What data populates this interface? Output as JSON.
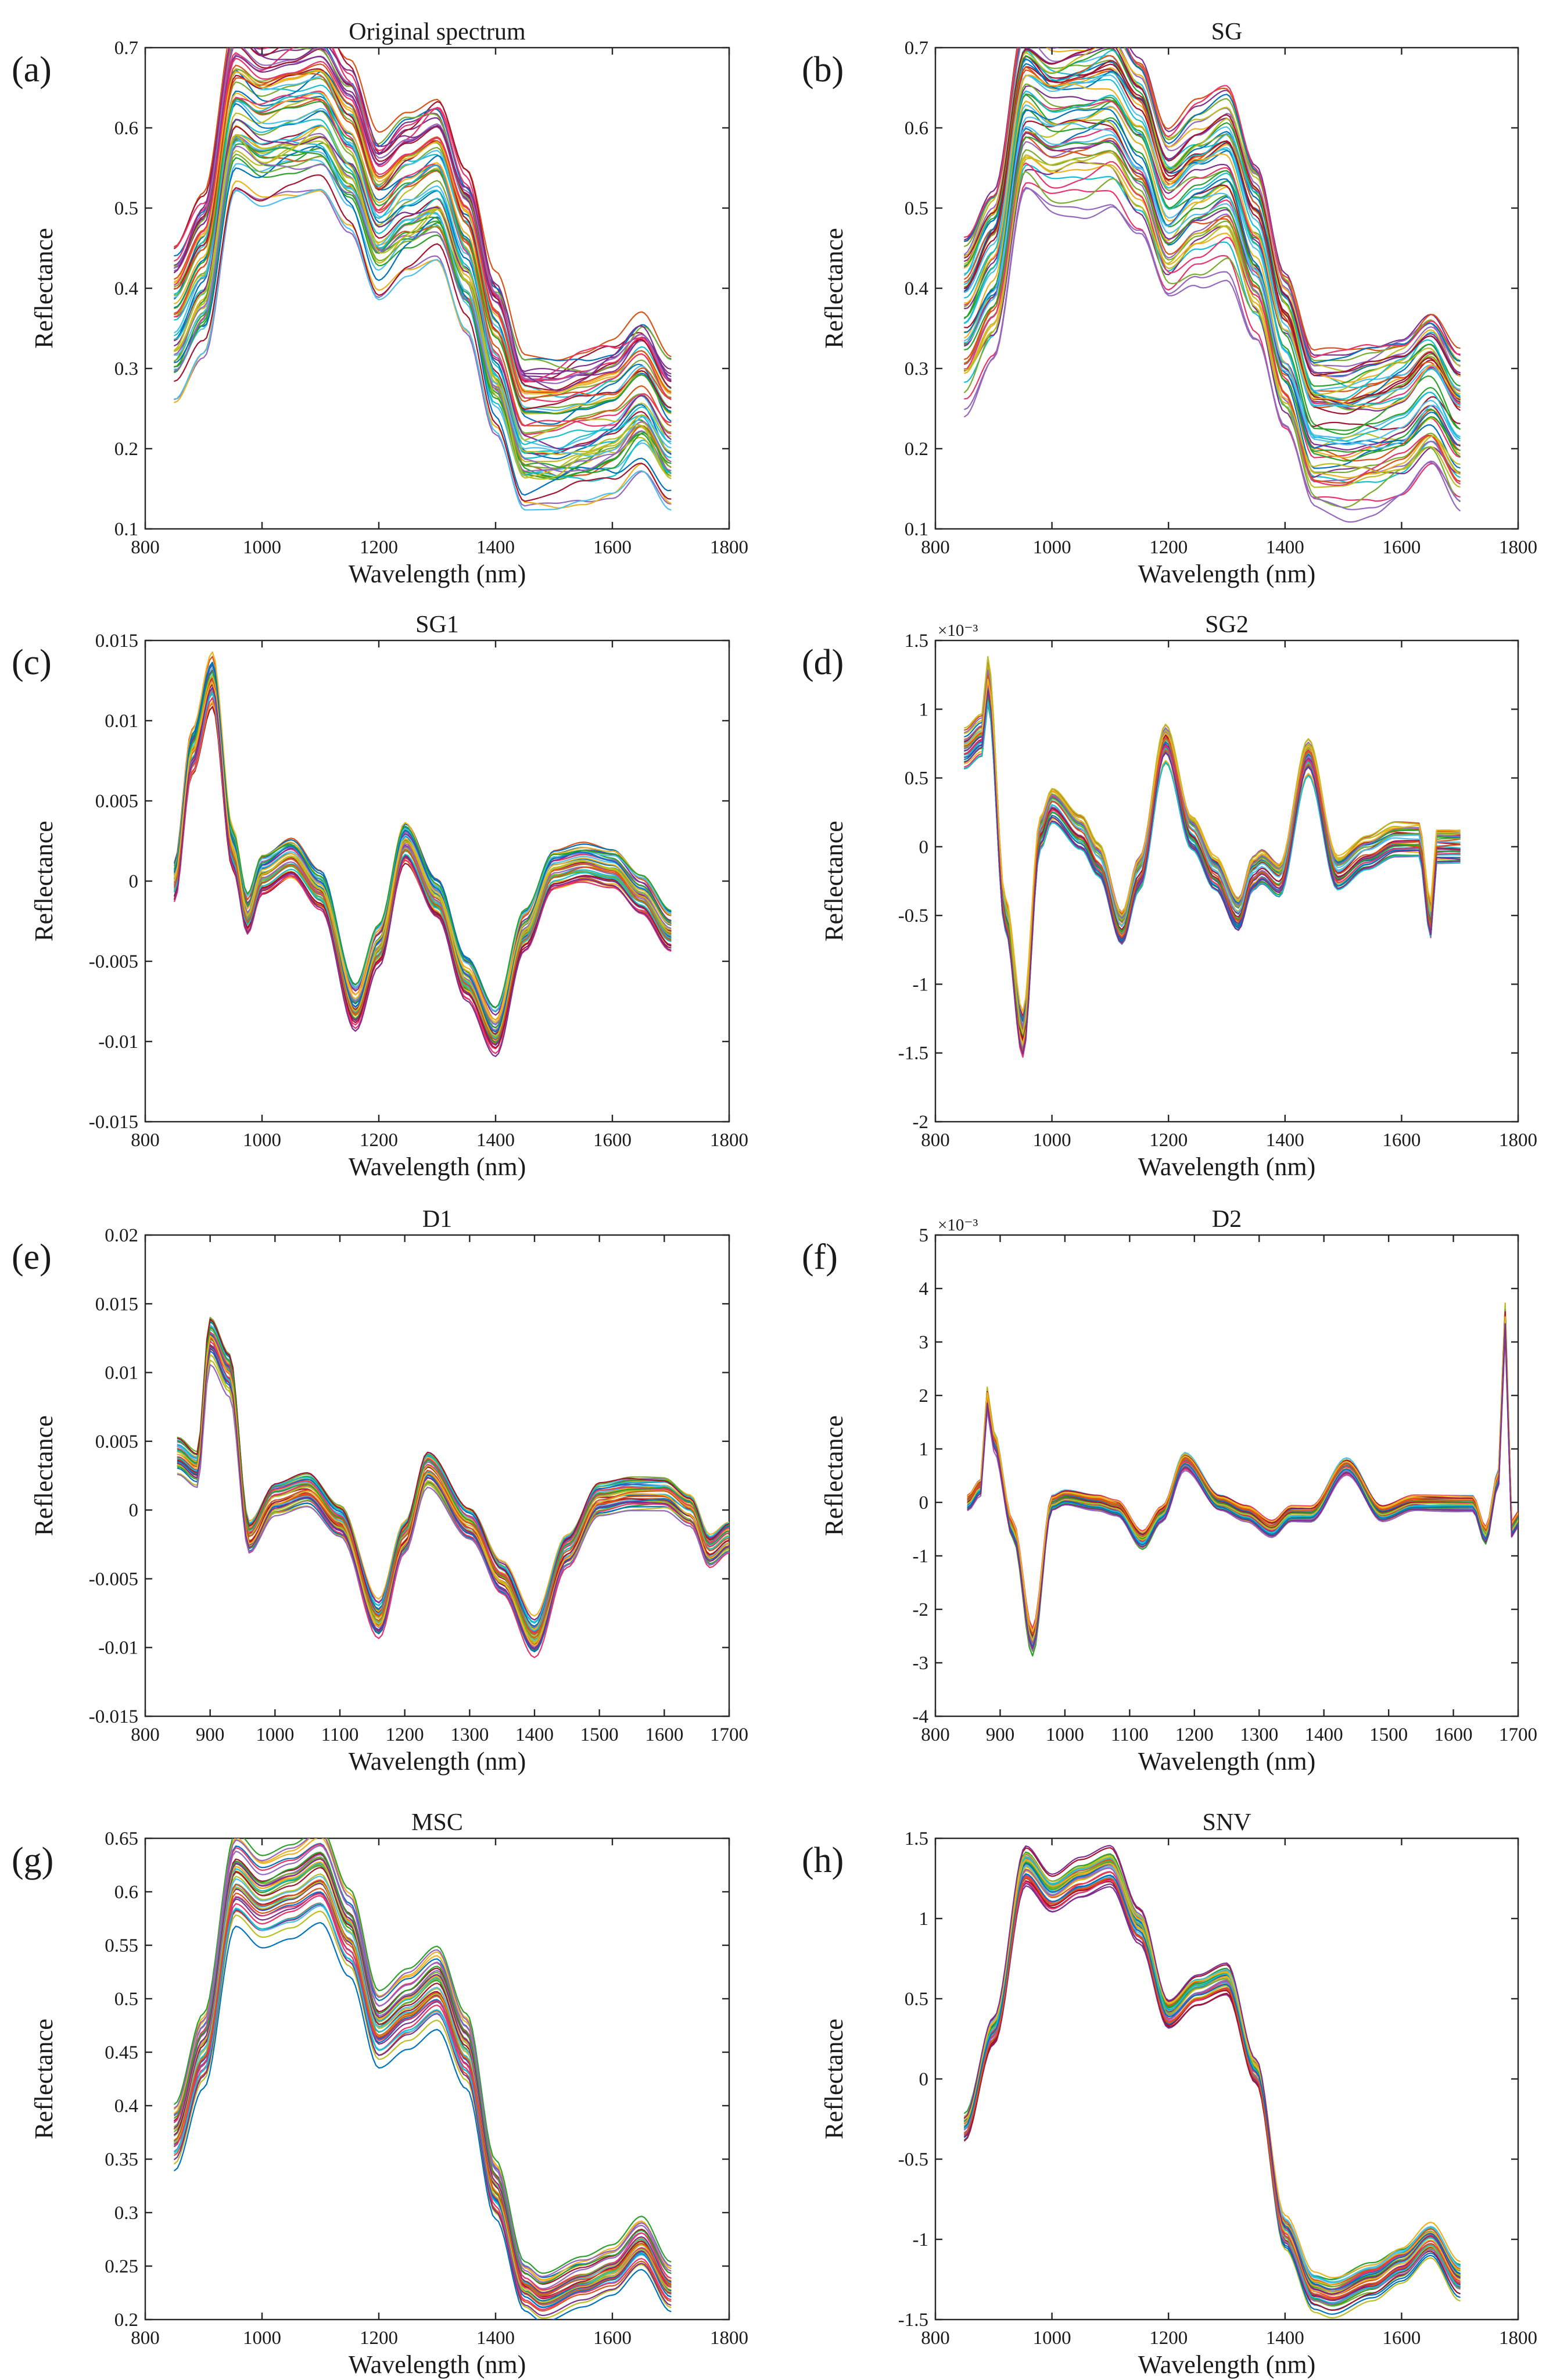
{
  "figure": {
    "description_labels": [
      "(a)",
      "(b)",
      "(c)",
      "(d)",
      "(e)",
      "(f)",
      "(g)",
      "(h)"
    ]
  },
  "palette": [
    "#0072bd",
    "#d95319",
    "#edb120",
    "#7e2f8e",
    "#77ac30",
    "#4dbeee",
    "#a2142f",
    "#e8336b",
    "#2ca02c",
    "#9467bd",
    "#17becf",
    "#bcbd22"
  ],
  "chart_data": [
    {
      "panel": "(a)",
      "type": "line",
      "title": "Original spectrum",
      "xlabel": "Wavelength (nm)",
      "ylabel": "Reflectance",
      "xlim": [
        800,
        1800
      ],
      "ylim": [
        0.1,
        0.7
      ],
      "xticks": [
        800,
        1000,
        1200,
        1400,
        1600,
        1800
      ],
      "xtick_labels": [
        "800",
        "1000",
        "1200",
        "1400",
        "1600",
        "1800"
      ],
      "yticks": [
        0.1,
        0.2,
        0.3,
        0.4,
        0.5,
        0.6,
        0.7
      ],
      "ytick_labels": [
        "0.1",
        "0.2",
        "0.3",
        "0.4",
        "0.5",
        "0.6",
        "0.7"
      ],
      "exponent": "",
      "series_count": 60,
      "spread": 0.09,
      "mean_profile": {
        "x": [
          850,
          900,
          955,
          1000,
          1050,
          1100,
          1150,
          1200,
          1250,
          1300,
          1350,
          1400,
          1450,
          1500,
          1550,
          1600,
          1650,
          1700
        ],
        "y": [
          0.36,
          0.42,
          0.63,
          0.61,
          0.62,
          0.63,
          0.58,
          0.49,
          0.52,
          0.54,
          0.45,
          0.32,
          0.22,
          0.22,
          0.23,
          0.24,
          0.27,
          0.22
        ]
      }
    },
    {
      "panel": "(b)",
      "type": "line",
      "title": "SG",
      "xlabel": "Wavelength (nm)",
      "ylabel": "Reflectance",
      "xlim": [
        800,
        1800
      ],
      "ylim": [
        0.1,
        0.7
      ],
      "xticks": [
        800,
        1000,
        1200,
        1400,
        1600,
        1800
      ],
      "xtick_labels": [
        "800",
        "1000",
        "1200",
        "1400",
        "1600",
        "1800"
      ],
      "yticks": [
        0.1,
        0.2,
        0.3,
        0.4,
        0.5,
        0.6,
        0.7
      ],
      "ytick_labels": [
        "0.1",
        "0.2",
        "0.3",
        "0.4",
        "0.5",
        "0.6",
        "0.7"
      ],
      "exponent": "",
      "series_count": 60,
      "spread": 0.09,
      "mean_profile": {
        "x": [
          850,
          900,
          955,
          1000,
          1050,
          1100,
          1150,
          1200,
          1250,
          1300,
          1350,
          1400,
          1450,
          1500,
          1550,
          1600,
          1650,
          1700
        ],
        "y": [
          0.36,
          0.42,
          0.63,
          0.61,
          0.62,
          0.63,
          0.58,
          0.49,
          0.52,
          0.54,
          0.45,
          0.32,
          0.22,
          0.22,
          0.23,
          0.24,
          0.27,
          0.22
        ]
      }
    },
    {
      "panel": "(c)",
      "type": "line",
      "title": "SG1",
      "xlabel": "Wavelength (nm)",
      "ylabel": "Reflectance",
      "xlim": [
        800,
        1800
      ],
      "ylim": [
        -0.015,
        0.015
      ],
      "xticks": [
        800,
        1000,
        1200,
        1400,
        1600,
        1800
      ],
      "xtick_labels": [
        "800",
        "1000",
        "1200",
        "1400",
        "1600",
        "1800"
      ],
      "yticks": [
        -0.015,
        -0.01,
        -0.005,
        0,
        0.005,
        0.01,
        0.015
      ],
      "ytick_labels": [
        "-0.015",
        "-0.01",
        "-0.005",
        "0",
        "0.005",
        "0.01",
        "0.015"
      ],
      "exponent": "",
      "series_count": 40,
      "spread": 0.0012,
      "mean_profile": {
        "x": [
          850,
          880,
          915,
          950,
          975,
          1000,
          1050,
          1100,
          1160,
          1200,
          1245,
          1300,
          1350,
          1400,
          1450,
          1500,
          1550,
          1600,
          1650,
          1700
        ],
        "y": [
          0.0,
          0.008,
          0.0125,
          0.002,
          -0.002,
          0.0005,
          0.0015,
          -0.0005,
          -0.0078,
          -0.004,
          0.0025,
          -0.001,
          -0.006,
          -0.0093,
          -0.003,
          0.0008,
          0.0012,
          0.0008,
          -0.0008,
          -0.003
        ]
      }
    },
    {
      "panel": "(d)",
      "type": "line",
      "title": "SG2",
      "xlabel": "Wavelength (nm)",
      "ylabel": "Reflectance",
      "xlim": [
        800,
        1800
      ],
      "ylim": [
        -2,
        1.5
      ],
      "xticks": [
        800,
        1000,
        1200,
        1400,
        1600,
        1800
      ],
      "xtick_labels": [
        "800",
        "1000",
        "1200",
        "1400",
        "1600",
        "1800"
      ],
      "yticks": [
        -2,
        -1.5,
        -1,
        -0.5,
        0,
        0.5,
        1,
        1.5
      ],
      "ytick_labels": [
        "-2",
        "-1.5",
        "-1",
        "-0.5",
        "0",
        "0.5",
        "1",
        "1.5"
      ],
      "exponent": "×10⁻³",
      "series_count": 40,
      "spread": 0.12,
      "mean_profile": {
        "x": [
          850,
          880,
          890,
          920,
          950,
          980,
          1000,
          1050,
          1080,
          1120,
          1150,
          1195,
          1240,
          1280,
          1320,
          1345,
          1360,
          1390,
          1440,
          1490,
          1540,
          1590,
          1630,
          1650,
          1660,
          1700
        ],
        "y": [
          0.7,
          0.8,
          1.2,
          -0.5,
          -1.4,
          0.1,
          0.3,
          0.1,
          -0.1,
          -0.6,
          -0.2,
          0.75,
          0.1,
          -0.2,
          -0.5,
          -0.2,
          -0.15,
          -0.25,
          0.65,
          -0.2,
          -0.05,
          0.05,
          0.05,
          -0.55,
          0.0,
          0.0
        ]
      }
    },
    {
      "panel": "(e)",
      "type": "line",
      "title": "D1",
      "xlabel": "Wavelength (nm)",
      "ylabel": "Reflectance",
      "xlim": [
        800,
        1700
      ],
      "ylim": [
        -0.015,
        0.02
      ],
      "xticks": [
        800,
        900,
        1000,
        1100,
        1200,
        1300,
        1400,
        1500,
        1600,
        1700
      ],
      "xtick_labels": [
        "800",
        "900",
        "1000",
        "1100",
        "1200",
        "1300",
        "1400",
        "1500",
        "1600",
        "1700"
      ],
      "yticks": [
        -0.015,
        -0.01,
        -0.005,
        0,
        0.005,
        0.01,
        0.015,
        0.02
      ],
      "ytick_labels": [
        "-0.015",
        "-0.01",
        "-0.005",
        "0",
        "0.005",
        "0.01",
        "0.015",
        "0.02"
      ],
      "exponent": "",
      "series_count": 40,
      "spread": 0.0012,
      "mean_profile": {
        "x": [
          850,
          880,
          900,
          930,
          960,
          1000,
          1050,
          1100,
          1160,
          1200,
          1235,
          1300,
          1350,
          1400,
          1450,
          1500,
          1550,
          1600,
          1640,
          1670,
          1700
        ],
        "y": [
          0.004,
          0.003,
          0.0125,
          0.01,
          -0.002,
          0.0008,
          0.0015,
          -0.0008,
          -0.008,
          -0.002,
          0.003,
          -0.001,
          -0.005,
          -0.0093,
          -0.003,
          0.0008,
          0.0012,
          0.0012,
          0.0,
          -0.003,
          -0.002
        ]
      }
    },
    {
      "panel": "(f)",
      "type": "line",
      "title": "D2",
      "xlabel": "Wavelength (nm)",
      "ylabel": "Reflectance",
      "xlim": [
        800,
        1700
      ],
      "ylim": [
        -4,
        5
      ],
      "xticks": [
        800,
        900,
        1000,
        1100,
        1200,
        1300,
        1400,
        1500,
        1600,
        1700
      ],
      "xtick_labels": [
        "800",
        "900",
        "1000",
        "1100",
        "1200",
        "1300",
        "1400",
        "1500",
        "1600",
        "1700"
      ],
      "yticks": [
        -4,
        -3,
        -2,
        -1,
        0,
        1,
        2,
        3,
        4,
        5
      ],
      "ytick_labels": [
        "-4",
        "-3",
        "-2",
        "-1",
        "0",
        "1",
        "2",
        "3",
        "4",
        "5"
      ],
      "exponent": "×10⁻³",
      "series_count": 40,
      "spread": 0.15,
      "mean_profile": {
        "x": [
          850,
          870,
          880,
          890,
          920,
          950,
          980,
          1000,
          1050,
          1080,
          1120,
          1150,
          1185,
          1240,
          1280,
          1320,
          1350,
          1380,
          1435,
          1490,
          1540,
          1590,
          1630,
          1650,
          1670,
          1680,
          1690,
          1700
        ],
        "y": [
          0.0,
          0.3,
          2.0,
          1.2,
          -0.5,
          -2.6,
          0.0,
          0.1,
          0.0,
          -0.1,
          -0.7,
          -0.2,
          0.8,
          0.0,
          -0.2,
          -0.5,
          -0.2,
          -0.2,
          0.7,
          -0.2,
          0.0,
          0.0,
          0.0,
          -0.6,
          0.5,
          3.5,
          -0.5,
          -0.3
        ]
      }
    },
    {
      "panel": "(g)",
      "type": "line",
      "title": "MSC",
      "xlabel": "Wavelength (nm)",
      "ylabel": "Reflectance",
      "xlim": [
        800,
        1800
      ],
      "ylim": [
        0.2,
        0.65
      ],
      "xticks": [
        800,
        1000,
        1200,
        1400,
        1600,
        1800
      ],
      "xtick_labels": [
        "800",
        "1000",
        "1200",
        "1400",
        "1600",
        "1800"
      ],
      "yticks": [
        0.2,
        0.25,
        0.3,
        0.35,
        0.4,
        0.45,
        0.5,
        0.55,
        0.6,
        0.65
      ],
      "ytick_labels": [
        "0.2",
        "0.25",
        "0.3",
        "0.35",
        "0.4",
        "0.45",
        "0.5",
        "0.55",
        "0.6",
        "0.65"
      ],
      "exponent": "",
      "series_count": 40,
      "spread": 0.012,
      "mean_profile": {
        "x": [
          850,
          900,
          955,
          1000,
          1050,
          1100,
          1150,
          1200,
          1250,
          1300,
          1350,
          1400,
          1450,
          1480,
          1550,
          1600,
          1650,
          1700
        ],
        "y": [
          0.37,
          0.45,
          0.61,
          0.59,
          0.6,
          0.615,
          0.56,
          0.47,
          0.49,
          0.51,
          0.45,
          0.32,
          0.23,
          0.22,
          0.235,
          0.245,
          0.27,
          0.23
        ]
      }
    },
    {
      "panel": "(h)",
      "type": "line",
      "title": "SNV",
      "xlabel": "Wavelength (nm)",
      "ylabel": "Reflectance",
      "xlim": [
        800,
        1800
      ],
      "ylim": [
        -1.5,
        1.5
      ],
      "xticks": [
        800,
        1000,
        1200,
        1400,
        1600,
        1800
      ],
      "xtick_labels": [
        "800",
        "1000",
        "1200",
        "1400",
        "1600",
        "1800"
      ],
      "yticks": [
        -1.5,
        -1,
        -0.5,
        0,
        0.5,
        1,
        1.5
      ],
      "ytick_labels": [
        "-1.5",
        "-1",
        "-0.5",
        "0",
        "0.5",
        "1",
        "1.5"
      ],
      "exponent": "",
      "series_count": 40,
      "spread": 0.08,
      "mean_profile": {
        "x": [
          850,
          900,
          955,
          1000,
          1050,
          1100,
          1150,
          1200,
          1250,
          1300,
          1350,
          1400,
          1450,
          1480,
          1550,
          1600,
          1650,
          1700
        ],
        "y": [
          -0.3,
          0.3,
          1.32,
          1.15,
          1.25,
          1.32,
          0.95,
          0.4,
          0.55,
          0.62,
          0.05,
          -0.95,
          -1.32,
          -1.35,
          -1.25,
          -1.15,
          -1.0,
          -1.25
        ]
      }
    }
  ]
}
